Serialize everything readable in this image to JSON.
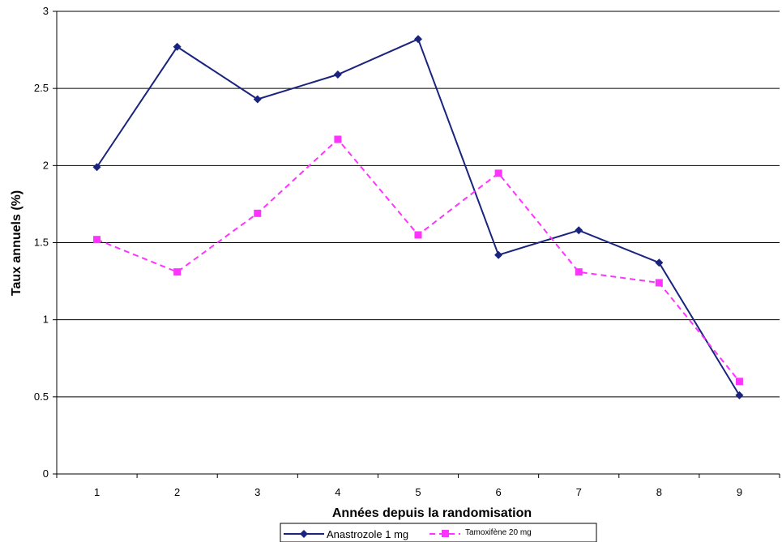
{
  "chart_data": {
    "type": "line",
    "title": "",
    "xlabel": "Années depuis la randomisation",
    "ylabel": "Taux annuels (%)",
    "categories": [
      "1",
      "2",
      "3",
      "4",
      "5",
      "6",
      "7",
      "8",
      "9"
    ],
    "x": [
      1,
      2,
      3,
      4,
      5,
      6,
      7,
      8,
      9
    ],
    "ylim": [
      0,
      3
    ],
    "yticks": [
      "0",
      "0.5",
      "1",
      "1.5",
      "2",
      "2.5",
      "3"
    ],
    "grid": "horizontal",
    "legend_position": "bottom",
    "series": [
      {
        "name": "Anastrozole 1 mg",
        "values": [
          1.99,
          2.77,
          2.43,
          2.59,
          2.82,
          1.42,
          1.58,
          1.37,
          0.51
        ],
        "color": "#1a237e",
        "marker": "diamond",
        "line_style": "solid"
      },
      {
        "name": "Tamoxifène 20 mg",
        "values": [
          1.52,
          1.31,
          1.69,
          2.17,
          1.55,
          1.95,
          1.31,
          1.24,
          0.6
        ],
        "color": "#ff33ff",
        "marker": "square",
        "line_style": "dashed"
      }
    ]
  }
}
